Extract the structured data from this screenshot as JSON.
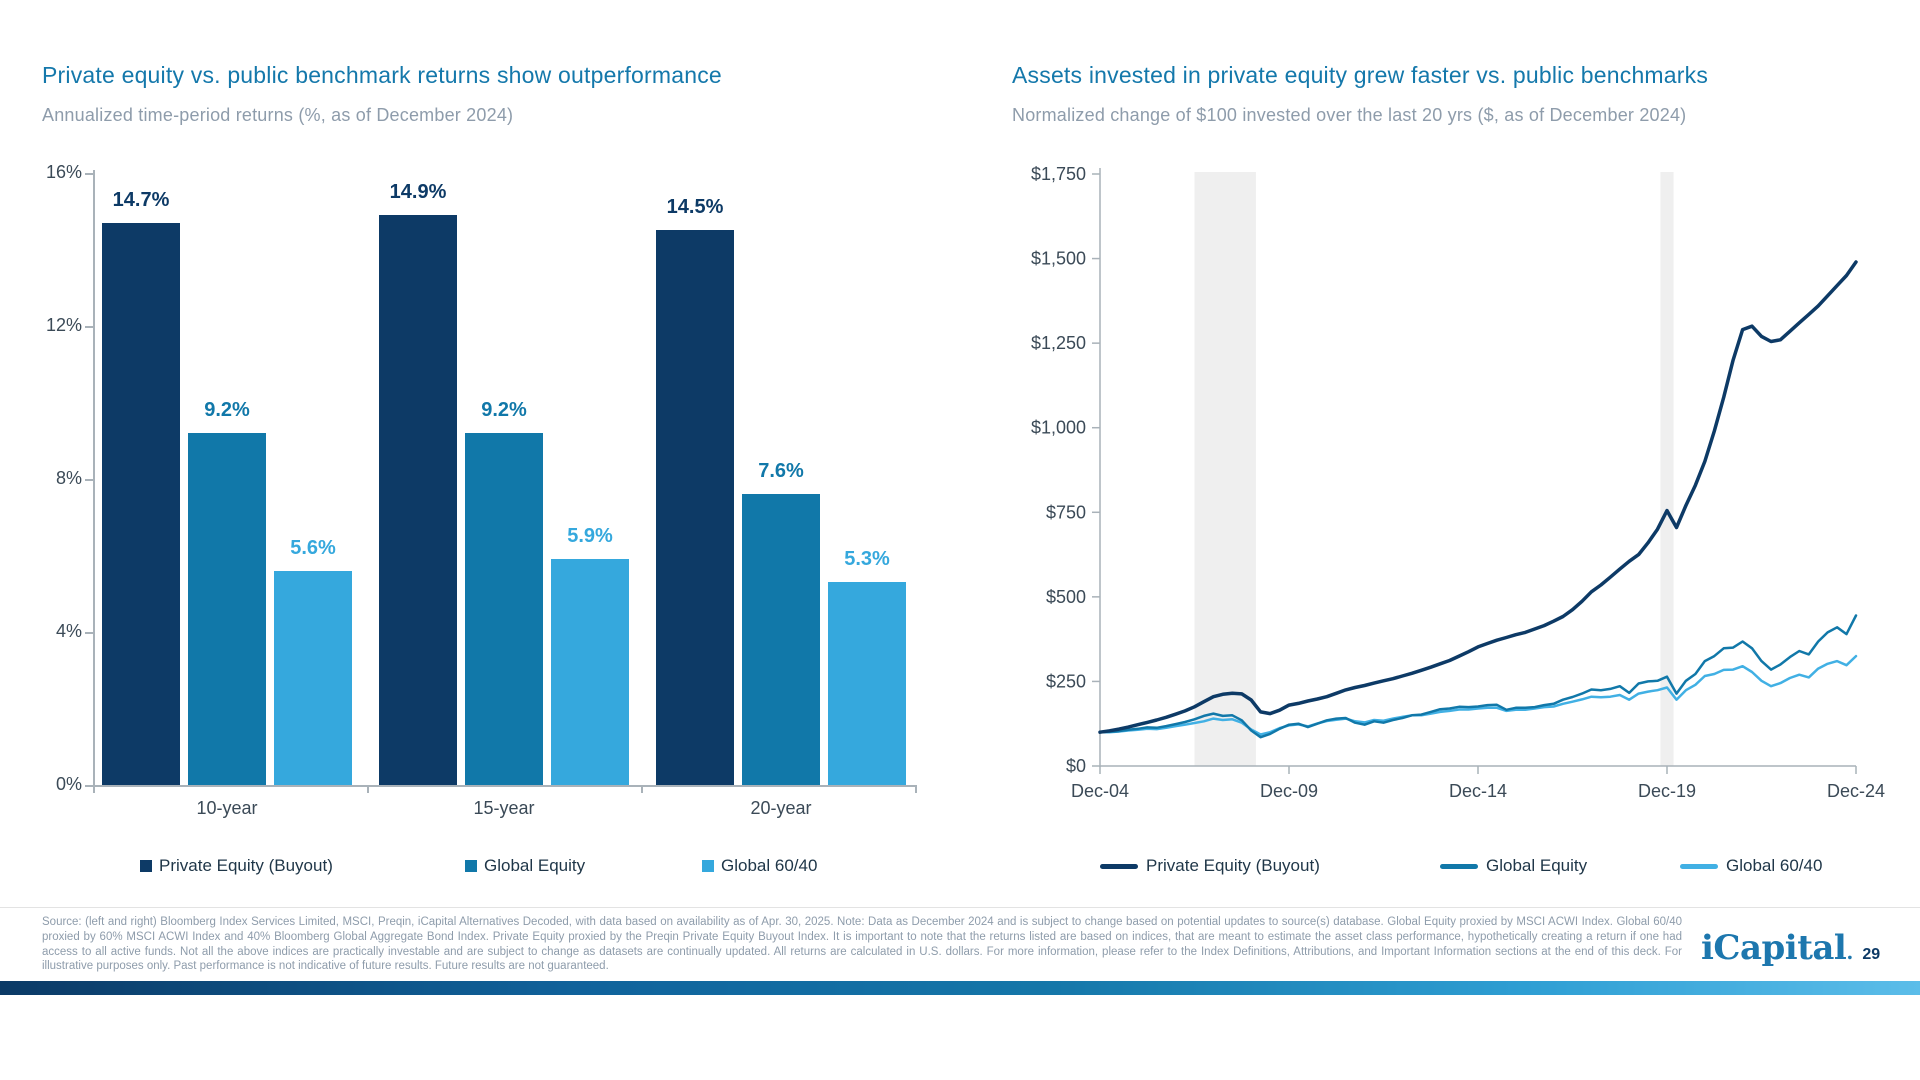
{
  "chart_data": [
    {
      "type": "bar",
      "title": "Private equity vs. public benchmark returns show outperformance",
      "subtitle": "Annualized time-period returns (%, as of December 2024)",
      "categories": [
        "10-year",
        "15-year",
        "20-year"
      ],
      "series": [
        {
          "name": "Private Equity (Buyout)",
          "color": "#0d3a66",
          "values": [
            14.7,
            14.9,
            14.5
          ]
        },
        {
          "name": "Global Equity",
          "color": "#1178a9",
          "values": [
            9.2,
            9.2,
            7.6
          ]
        },
        {
          "name": "Global 60/40",
          "color": "#35a8dd",
          "values": [
            5.6,
            5.9,
            5.3
          ]
        }
      ],
      "ylim": [
        0,
        16
      ],
      "y_ticks": [
        "16%",
        "12%",
        "8%",
        "4%",
        "0%"
      ],
      "value_suffix": "%",
      "grid": false,
      "legend_position": "bottom"
    },
    {
      "type": "line",
      "title": "Assets invested in private equity grew faster vs. public benchmarks",
      "subtitle": "Normalized change of $100 invested over the last 20 yrs ($, as of December 2024)",
      "x_labels": [
        "Dec-04",
        "Dec-09",
        "Dec-14",
        "Dec-19",
        "Dec-24"
      ],
      "x_frequency": "quarterly",
      "ylim": [
        0,
        1750
      ],
      "y_ticks": [
        "$1,750",
        "$1,500",
        "$1,250",
        "$1,000",
        "$750",
        "$500",
        "$250",
        "$0"
      ],
      "grid": false,
      "legend_position": "bottom",
      "recession_bands": [
        {
          "from_q": 10,
          "to_q": 16.5
        },
        {
          "from_q": 59.3,
          "to_q": 60.7
        }
      ],
      "series": [
        {
          "name": "Global 60/40",
          "color": "#41b0e4",
          "stroke_width": 2.5,
          "values": [
            100,
            100,
            102,
            105,
            107,
            110,
            109,
            113,
            118,
            122,
            127,
            132,
            140,
            136,
            138,
            128,
            108,
            93,
            100,
            112,
            120,
            123,
            117,
            126,
            133,
            137,
            140,
            132,
            129,
            136,
            134,
            140,
            145,
            150,
            150,
            155,
            160,
            163,
            167,
            167,
            170,
            172,
            172,
            163,
            166,
            166,
            170,
            174,
            176,
            184,
            190,
            197,
            205,
            203,
            205,
            210,
            196,
            214,
            220,
            224,
            232,
            196,
            224,
            240,
            266,
            272,
            284,
            285,
            295,
            278,
            252,
            236,
            245,
            260,
            270,
            262,
            288,
            302,
            310,
            298,
            325
          ]
        },
        {
          "name": "Global Equity",
          "color": "#1178a9",
          "stroke_width": 2.5,
          "values": [
            100,
            101,
            103,
            107,
            110,
            114,
            113,
            118,
            124,
            130,
            138,
            148,
            155,
            148,
            150,
            135,
            105,
            85,
            95,
            110,
            122,
            125,
            115,
            125,
            135,
            140,
            142,
            128,
            122,
            132,
            128,
            136,
            142,
            150,
            152,
            160,
            168,
            170,
            175,
            174,
            176,
            180,
            181,
            166,
            172,
            172,
            174,
            180,
            184,
            196,
            204,
            214,
            226,
            224,
            228,
            236,
            216,
            244,
            250,
            252,
            264,
            214,
            252,
            272,
            310,
            325,
            348,
            350,
            368,
            348,
            310,
            285,
            300,
            322,
            340,
            330,
            368,
            395,
            410,
            390,
            445
          ]
        },
        {
          "name": "Private Equity (Buyout)",
          "color": "#0d3a66",
          "stroke_width": 3.5,
          "values": [
            100,
            104,
            109,
            115,
            122,
            129,
            136,
            144,
            153,
            163,
            175,
            190,
            205,
            212,
            215,
            213,
            195,
            160,
            155,
            165,
            180,
            185,
            192,
            198,
            205,
            215,
            225,
            232,
            238,
            245,
            252,
            258,
            266,
            274,
            283,
            292,
            302,
            312,
            325,
            338,
            352,
            362,
            372,
            380,
            388,
            395,
            405,
            415,
            428,
            442,
            462,
            487,
            515,
            535,
            558,
            582,
            605,
            625,
            660,
            700,
            755,
            705,
            770,
            830,
            900,
            990,
            1090,
            1200,
            1290,
            1300,
            1270,
            1255,
            1260,
            1285,
            1310,
            1335,
            1360,
            1390,
            1420,
            1450,
            1490
          ]
        }
      ],
      "legend_order": [
        "Private Equity (Buyout)",
        "Global Equity",
        "Global 60/40"
      ]
    }
  ],
  "footer": {
    "source": "Source: (left and right) Bloomberg Index Services Limited, MSCI, Preqin, iCapital Alternatives Decoded, with data based on availability as of Apr. 30, 2025. Note: Data as December 2024 and is subject to change based on potential updates to source(s) database. Global Equity proxied by MSCI ACWI Index. Global 60/40 proxied by 60% MSCI ACWI Index and 40% Bloomberg Global Aggregate Bond Index. Private Equity proxied by the Preqin Private Equity Buyout Index. It is important to note that the returns listed are based on indices, that are meant to estimate the asset class performance, hypothetically creating a return if one had access to all active funds. Not all the above indices are practically investable and are subject to change as datasets are continually updated. All returns are calculated in U.S. dollars. For more information, please refer to the Index Definitions, Attributions, and Important Information sections at the end of this deck. For illustrative purposes only. Past performance is not indicative of future results. Future results are not guaranteed.",
    "logo": "iCapital",
    "logo_dot": ".",
    "page": "29"
  },
  "colors": {
    "title_blue": "#1478ab",
    "subtitle_gray": "#8e9cab",
    "navy": "#0d3a66",
    "medium_blue": "#1178a9",
    "light_blue": "#35a8dd",
    "axis_gray": "#a9b2b9",
    "recession_band": "#efefef"
  }
}
